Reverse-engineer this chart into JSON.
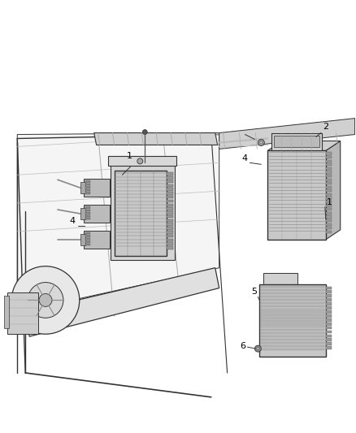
{
  "background_color": "#ffffff",
  "fig_width": 4.38,
  "fig_height": 5.33,
  "dpi": 100,
  "line_color": "#333333",
  "light_gray": "#d8d8d8",
  "mid_gray": "#aaaaaa",
  "dark_gray": "#555555"
}
